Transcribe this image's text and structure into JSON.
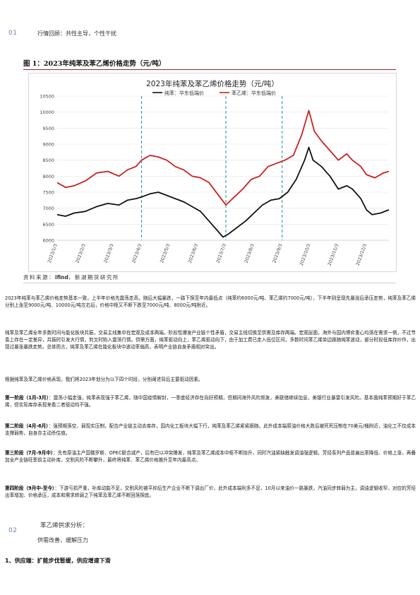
{
  "section1": {
    "number": "01",
    "title": "行情回顾：共性主导，个性干扰"
  },
  "figure": {
    "caption": "图 1：2023年纯苯及苯乙烯价格走势（元/吨）",
    "source_prefix": "资料来源：",
    "source_brand": "ifind",
    "source_suffix": "，新湖期货研究所"
  },
  "chart_data": {
    "type": "line",
    "title": "2023年纯苯及苯乙烯价格走势（元/吨）",
    "ylim": [
      6000,
      10500
    ],
    "yticks": [
      6000,
      6500,
      7000,
      7500,
      8000,
      8500,
      9000,
      9500,
      10000,
      10500
    ],
    "xlabels": [
      "2023/1/3",
      "2023/2/3",
      "2023/3/3",
      "2023/4/3",
      "2023/5/3",
      "2023/6/3",
      "2023/7/3",
      "2023/8/3",
      "2023/9/3",
      "2023/10/3",
      "2023/11/3",
      "2023/12/3"
    ],
    "vlines": [
      "2023/4/3",
      "2023/7/3",
      "2023/9/3"
    ],
    "legend_position": "top",
    "series": [
      {
        "name": "纯苯：华东低端价",
        "color": "#111111",
        "points": [
          [
            0,
            6800
          ],
          [
            0.3,
            6750
          ],
          [
            0.6,
            6850
          ],
          [
            1.0,
            6900
          ],
          [
            1.4,
            7050
          ],
          [
            1.8,
            7150
          ],
          [
            2.2,
            7100
          ],
          [
            2.5,
            7250
          ],
          [
            2.8,
            7300
          ],
          [
            3.0,
            7350
          ],
          [
            3.3,
            7450
          ],
          [
            3.6,
            7500
          ],
          [
            3.9,
            7400
          ],
          [
            4.2,
            7300
          ],
          [
            4.5,
            7200
          ],
          [
            4.8,
            7050
          ],
          [
            5.1,
            6900
          ],
          [
            5.4,
            6600
          ],
          [
            5.7,
            6300
          ],
          [
            5.9,
            6100
          ],
          [
            6.1,
            6200
          ],
          [
            6.4,
            6400
          ],
          [
            6.7,
            6600
          ],
          [
            7.0,
            6850
          ],
          [
            7.3,
            7100
          ],
          [
            7.6,
            7250
          ],
          [
            7.9,
            7300
          ],
          [
            8.2,
            7500
          ],
          [
            8.5,
            7900
          ],
          [
            8.8,
            8500
          ],
          [
            8.95,
            8900
          ],
          [
            9.1,
            8500
          ],
          [
            9.4,
            8300
          ],
          [
            9.7,
            8000
          ],
          [
            10.0,
            7600
          ],
          [
            10.3,
            7700
          ],
          [
            10.5,
            7600
          ],
          [
            10.8,
            7300
          ],
          [
            11.0,
            6950
          ],
          [
            11.2,
            6800
          ],
          [
            11.5,
            6850
          ],
          [
            11.8,
            6950
          ]
        ]
      },
      {
        "name": "苯乙烯：华东低端价",
        "color": "#cc1f1f",
        "points": [
          [
            0,
            7800
          ],
          [
            0.3,
            7650
          ],
          [
            0.6,
            7700
          ],
          [
            1.0,
            7850
          ],
          [
            1.4,
            8100
          ],
          [
            1.8,
            8150
          ],
          [
            2.2,
            8000
          ],
          [
            2.5,
            8200
          ],
          [
            2.8,
            8300
          ],
          [
            3.0,
            8500
          ],
          [
            3.3,
            8650
          ],
          [
            3.6,
            8600
          ],
          [
            3.9,
            8500
          ],
          [
            4.2,
            8300
          ],
          [
            4.5,
            8200
          ],
          [
            4.8,
            8000
          ],
          [
            5.1,
            7950
          ],
          [
            5.4,
            7800
          ],
          [
            5.7,
            7450
          ],
          [
            6.0,
            7100
          ],
          [
            6.3,
            7350
          ],
          [
            6.6,
            7600
          ],
          [
            6.9,
            7900
          ],
          [
            7.2,
            8000
          ],
          [
            7.5,
            8300
          ],
          [
            7.8,
            8400
          ],
          [
            8.1,
            8500
          ],
          [
            8.4,
            8650
          ],
          [
            8.7,
            9300
          ],
          [
            8.95,
            10050
          ],
          [
            9.15,
            9400
          ],
          [
            9.4,
            9100
          ],
          [
            9.7,
            8800
          ],
          [
            10.0,
            8500
          ],
          [
            10.3,
            8700
          ],
          [
            10.5,
            8500
          ],
          [
            10.8,
            8300
          ],
          [
            11.0,
            8050
          ],
          [
            11.3,
            7950
          ],
          [
            11.6,
            8100
          ],
          [
            11.8,
            8150
          ]
        ]
      }
    ]
  },
  "paragraphs": {
    "p1": "2023年纯苯与苯乙烯价格走势基本一致，上半年价格先震荡走高，随后大幅暴跌，一路下探至年内最低点（纯苯约6000元/吨、苯乙烯约7000元/吨），下半年则呈现先暴涨后承压走势，纯苯及苯乙烯分别上涨至9000元/吨、10000元/吨左右后，价格中枢又不断下跌至7000元/吨、8000元/吨附近。",
    "p2": "纯苯及苯乙烯全年多数时间与能化板块共振，交易主线集中在宏观及成本两端，阶段性爆发产业链个性矛盾，交易主线切换至供需及库存两端。宏观层面，海外与国内博弈重心均落在需求一侧，不过节奏上存在一定差异，共振时引发大行情，剪叉时陷入震荡行情。供需方面，纯苯驱动向上，苯乙烯驱动向下，由于加工费已走入低位区间，多数时间苯乙烯单边跟随纯苯波动，部分时段低库存炒作，出现过暴涨暴跌走势。总体而言，纯苯及苯乙烯在能化板块中波动率偏高，表明产业链自身矛盾相对突出。",
    "p3": "根据纯苯及苯乙烯价格表现，我们将2023年划分为以下四个时段，分别阐述背后主要驱动因素。",
    "p4_head": "第一阶段（1月-3月）",
    "p4": "：震荡小幅走强，纯苯表现强于苯乙烯，随中国疫情解封，一季度经济存在向好预期，但期间海外风险频发，美联储继续加息，美银行业暴雷引发风险。基本面纯苯预期好于苯乙烯，但实际库存表现来看二者驱动均不强。",
    "p5_head": "第二阶段（4月-6月）",
    "p5": "：强预期落空、弱现实压制，配合产业链主动去库存，国内化工板块大幅下行，纯苯及苯乙烯紧紧跟随。此外成本端原油价格大跌后被死死压制在70美元/桶附近，油化工不仅成本支撑弱势，自身亦主动杀估值。",
    "p6_head": "第三阶段（7月-9月中）",
    "p6": "：先有原油主产国俄罗斯、OPEC联合减产，后有巴以冲突爆发，纯苯及苯乙烯成本中枢不断抬升，同时汽油紧缺触发调油强逻辑，芳烃系列产品普遍出率降低、价格上涨，再叠加全产业链旺季前主动补库，交割风险不断攀升，最终将纯苯、苯乙烯价格推升至年内最高点。",
    "p7_head": "第四阶段（9月中-至今）",
    "p7": "：下游亏损严重，补库动能不足，交割风险被平抑后生产企业不断下调出厂价，此外成本端利多不足，10月以来油价一路暴跌，汽油同步转弱为主，调油逻辑收窄，对应的芳烃出率增加、价格承压，成本和需求转弱之下纯苯及苯乙烯不断回落探底。"
  },
  "section2": {
    "number": "02",
    "title": "苯乙烯供求分析：",
    "subtitle": "供需改善，缓解压力"
  },
  "heading1": "1、供应端：扩能步伐暂缓，供应增速下滑"
}
